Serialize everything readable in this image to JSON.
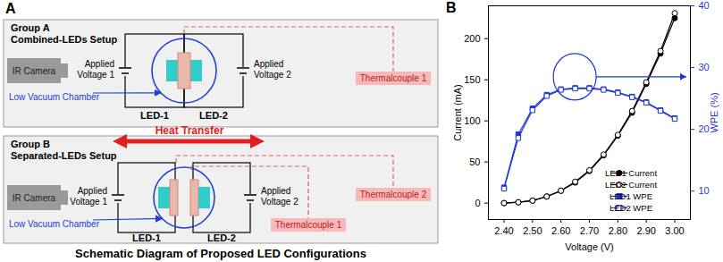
{
  "diagram": {
    "panel_label": "A",
    "caption": "Schematic Diagram of Proposed LED Configurations",
    "heat_transfer": "Heat Transfer",
    "groups": [
      {
        "title": "Group A",
        "subtitle": "Combined-LEDs Setup",
        "camera": "IR Camera",
        "voltage_1": [
          "Applied",
          "Voltage 1"
        ],
        "voltage_2": [
          "Applied",
          "Voltage 2"
        ],
        "chamber": "Low Vacuum Chamber",
        "leds": [
          "LED-1",
          "LED-2"
        ],
        "thermocouples": [
          "Thermalcouple 1"
        ]
      },
      {
        "title": "Group B",
        "subtitle": "Separated-LEDs Setup",
        "camera": "IR Camera",
        "voltage_1": [
          "Applied",
          "Voltage 1"
        ],
        "voltage_2": [
          "Applied",
          "Voltage 2"
        ],
        "chamber": "Low Vacuum Chamber",
        "leds": [
          "LED-1",
          "LED-2"
        ],
        "thermocouples": [
          "Thermalcouple 2",
          "Thermalcouple 1"
        ]
      }
    ]
  },
  "chart_data": {
    "panel_label": "B",
    "type": "line",
    "xlabel": "Voltage (V)",
    "ylabel": "Current (mA)",
    "y2label": "WPE (%)",
    "x": [
      2.4,
      2.45,
      2.5,
      2.55,
      2.6,
      2.65,
      2.7,
      2.75,
      2.8,
      2.85,
      2.9,
      2.95,
      3.0
    ],
    "xlim": [
      2.345,
      3.055
    ],
    "xticks": [
      {
        "value": 2.4,
        "label": "2.40"
      },
      {
        "value": 2.5,
        "label": "2.50"
      },
      {
        "value": 2.6,
        "label": "2.60"
      },
      {
        "value": 2.7,
        "label": "2.70"
      },
      {
        "value": 2.8,
        "label": "2.80"
      },
      {
        "value": 2.9,
        "label": "2.90"
      },
      {
        "value": 3.0,
        "label": "3.00"
      }
    ],
    "ylim": [
      -20,
      240
    ],
    "yticks": [
      0,
      50,
      100,
      150,
      200
    ],
    "y2lim": [
      5.4,
      40
    ],
    "y2ticks": [
      10,
      20,
      30,
      40
    ],
    "legend": "bottom-right",
    "series": [
      {
        "name": "LED1 Current",
        "color": "#000000",
        "marker": "circle",
        "line_style": "solid",
        "values": [
          0,
          1,
          3,
          8,
          15,
          25,
          39,
          58,
          82,
          110,
          145,
          182,
          225
        ]
      },
      {
        "name": "LED2 Current",
        "color": "#000000",
        "marker": "circle_open",
        "line_style": "solid",
        "values": [
          0,
          1,
          3,
          8,
          15,
          26,
          40,
          59,
          83,
          112,
          147,
          185,
          231
        ]
      },
      {
        "name": "LED1 WPE",
        "color": "#1f35d6",
        "marker": "square",
        "line_style": "solid",
        "axis": "y2",
        "values": [
          10.6,
          19.2,
          23.4,
          25.6,
          26.5,
          26.7,
          26.7,
          26.5,
          26.0,
          25.3,
          24.4,
          23.1,
          21.8
        ]
      },
      {
        "name": "LED2 WPE",
        "color": "#1f35d6",
        "marker": "square_open",
        "line_style": "solid",
        "axis": "y2",
        "values": [
          10.4,
          18.6,
          23.1,
          25.4,
          26.4,
          26.6,
          26.6,
          26.4,
          25.9,
          25.2,
          24.3,
          23.0,
          21.7
        ]
      }
    ]
  }
}
